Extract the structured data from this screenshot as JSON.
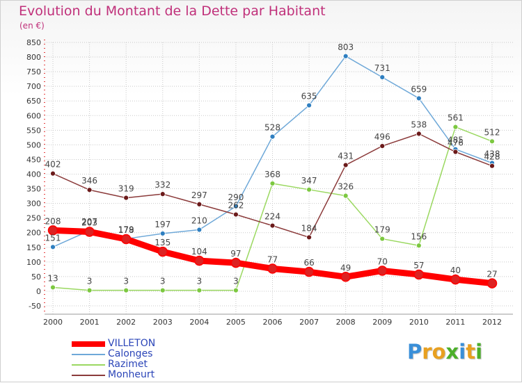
{
  "title": "Evolution du Montant de la Dette par Habitant",
  "subtitle": "(en €)",
  "logo": {
    "letters": [
      "P",
      "r",
      "o",
      "x",
      "i",
      "t",
      "i"
    ],
    "colors": [
      "#3a8fd8",
      "#e8a020",
      "#e8a020",
      "#4caf2a",
      "#3a8fd8",
      "#e8a020",
      "#4caf2a"
    ]
  },
  "legend": [
    {
      "label": "VILLETON",
      "color": "#ff0000"
    },
    {
      "label": "Calonges",
      "color": "#6ea8d8"
    },
    {
      "label": "Razimet",
      "color": "#9ad860"
    },
    {
      "label": "Monheurt",
      "color": "#8b3a3a"
    }
  ],
  "chart_data": {
    "type": "line",
    "title": "Evolution du Montant de la Dette par Habitant",
    "subtitle": "(en €)",
    "xlabel": "",
    "ylabel": "",
    "x": [
      "2000",
      "2001",
      "2002",
      "2003",
      "2004",
      "2005",
      "2006",
      "2007",
      "2008",
      "2009",
      "2010",
      "2011",
      "2012"
    ],
    "ylim": [
      -50,
      850
    ],
    "yticks": [
      -50,
      0,
      50,
      100,
      150,
      200,
      250,
      300,
      350,
      400,
      450,
      500,
      550,
      600,
      650,
      700,
      750,
      800,
      850
    ],
    "grid": true,
    "legend_position": "bottom-left",
    "series": [
      {
        "name": "VILLETON",
        "color": "#ff0000",
        "marker": "#dd2222",
        "thick": true,
        "values": [
          208,
          203,
          178,
          135,
          104,
          97,
          77,
          66,
          49,
          70,
          57,
          40,
          27
        ],
        "labels": [
          "208",
          "203",
          "178",
          "135",
          "104",
          "97",
          "77",
          "66",
          "49",
          "70",
          "57",
          "40",
          "27"
        ]
      },
      {
        "name": "Calonges",
        "color": "#6ea8d8",
        "marker": "#2f7fc0",
        "thick": false,
        "values": [
          151,
          207,
          179,
          197,
          210,
          290,
          528,
          635,
          803,
          731,
          659,
          485,
          438
        ],
        "labels": [
          "151",
          "207",
          "179",
          "197",
          "210",
          "290",
          "528",
          "635",
          "803",
          "731",
          "659",
          "485",
          "438"
        ]
      },
      {
        "name": "Razimet",
        "color": "#9ad860",
        "marker": "#7cc840",
        "thick": false,
        "values": [
          13,
          3,
          3,
          3,
          3,
          3,
          368,
          347,
          326,
          179,
          156,
          561,
          512
        ],
        "labels": [
          "13",
          "3",
          "3",
          "3",
          "3",
          "3",
          "368",
          "347",
          "326",
          "179",
          "156",
          "561",
          "512"
        ]
      },
      {
        "name": "Monheurt",
        "color": "#8b3a3a",
        "marker": "#6b1a1a",
        "thick": false,
        "values": [
          402,
          346,
          319,
          332,
          297,
          262,
          224,
          184,
          431,
          496,
          538,
          476,
          428
        ],
        "labels": [
          "402",
          "346",
          "319",
          "332",
          "297",
          "262",
          "224",
          "184",
          "431",
          "496",
          "538",
          "476",
          "428"
        ]
      }
    ]
  }
}
